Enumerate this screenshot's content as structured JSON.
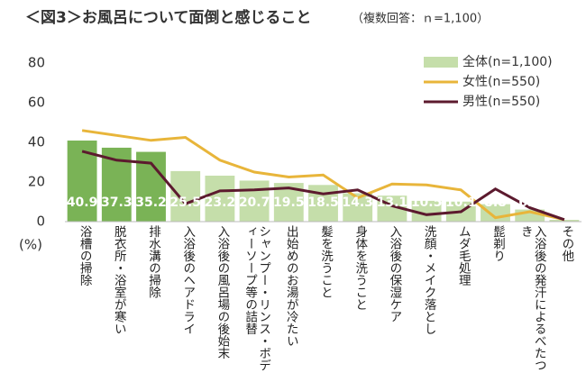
{
  "chart_data": {
    "type": "bar_line",
    "title": "＜図3＞お風呂について面倒と感じること",
    "subtitle": "（複数回答：ｎ=1,100）",
    "y_unit": "(%)",
    "categories": [
      "浴槽の掃除",
      "脱衣所・浴室が寒い",
      "排水溝の掃除",
      "入浴後のヘアドライ",
      "入浴後の風呂場の後始末",
      "シャンプー・リンス・ボディーソープ等の詰替",
      "出始めのお湯が冷たい",
      "髪を洗うこと",
      "身体を洗うこと",
      "入浴後の保湿ケア",
      "洗顔・メイク落とし",
      "ムダ毛処理",
      "髭剃り",
      "入浴後の発汗によるべたつき",
      "その他"
    ],
    "series": [
      {
        "name": "全体(n=1,100)",
        "kind": "bar",
        "color": "#c5deaa",
        "colors": [
          "#7ab356",
          "#7ab356",
          "#7ab356",
          "#c5deaa",
          "#c5deaa",
          "#c5deaa",
          "#c5deaa",
          "#c5deaa",
          "#c5deaa",
          "#c5deaa",
          "#c5deaa",
          "#c5deaa",
          "#c5deaa",
          "#c5deaa",
          "#c5deaa"
        ],
        "values": [
          40.9,
          37.3,
          35.2,
          25.5,
          23.2,
          20.7,
          19.5,
          18.5,
          14.3,
          13.1,
          10.5,
          10.1,
          8.8,
          6.1,
          0.9
        ]
      },
      {
        "name": "女性(n=550)",
        "kind": "line",
        "color": "#e8b53a",
        "values": [
          46,
          43.5,
          41,
          42.5,
          31,
          25,
          22.5,
          23.5,
          12,
          19,
          18.5,
          16,
          2,
          5,
          1
        ]
      },
      {
        "name": "男性(n=550)",
        "kind": "line",
        "color": "#5c1a2e",
        "values": [
          35.5,
          31,
          29.5,
          9,
          15.5,
          16,
          17,
          14,
          16,
          8,
          3.5,
          5,
          16.5,
          7,
          1
        ]
      }
    ],
    "ylim": [
      0,
      80
    ],
    "yticks": [
      0,
      20,
      40,
      60,
      80
    ]
  }
}
